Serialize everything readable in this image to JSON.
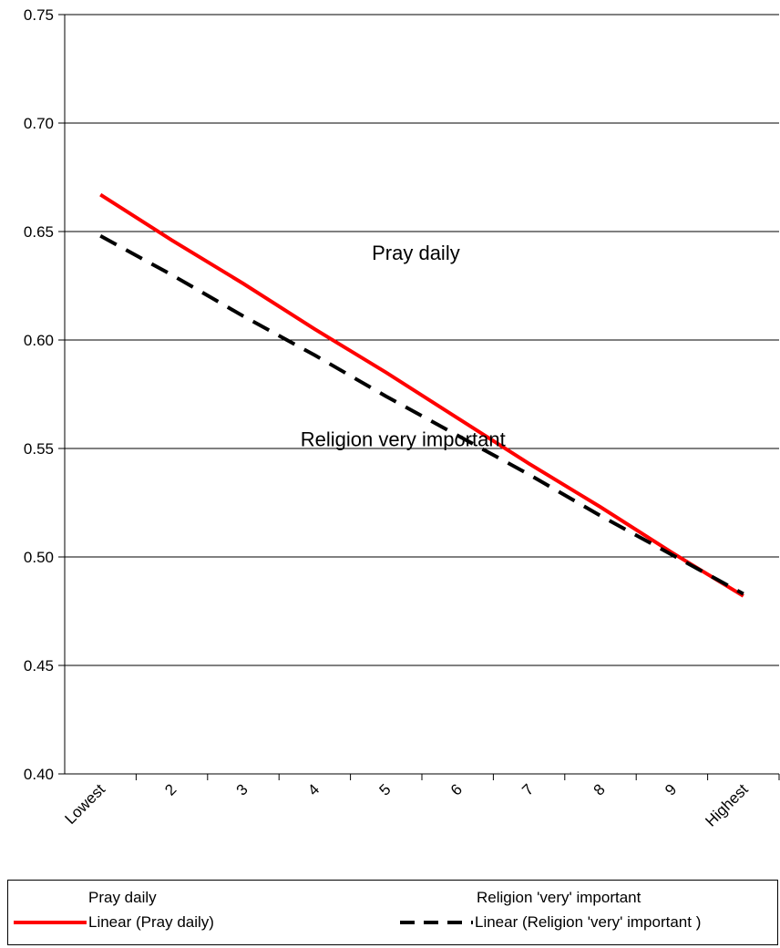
{
  "chart_data": {
    "type": "line",
    "title": "",
    "xlabel": "",
    "ylabel": "",
    "categories": [
      "Lowest",
      "2",
      "3",
      "4",
      "5",
      "6",
      "7",
      "8",
      "9",
      "Highest"
    ],
    "ylim": [
      0.4,
      0.75
    ],
    "y_ticks": [
      "0.40",
      "0.45",
      "0.50",
      "0.55",
      "0.60",
      "0.65",
      "0.70",
      "0.75"
    ],
    "grid": "horizontal",
    "series": [
      {
        "name": "Linear (Pray daily)",
        "color": "#ff0000",
        "style": "solid",
        "values": [
          0.667,
          0.646,
          0.626,
          0.605,
          0.585,
          0.564,
          0.543,
          0.523,
          0.502,
          0.482
        ]
      },
      {
        "name": "Linear (Religion 'very' important )",
        "color": "#000000",
        "style": "dashed",
        "values": [
          0.648,
          0.63,
          0.611,
          0.593,
          0.574,
          0.556,
          0.538,
          0.519,
          0.501,
          0.483
        ]
      }
    ],
    "annotations": [
      {
        "text": "Pray daily",
        "x": 4.3,
        "y": 0.637
      },
      {
        "text": "Religion very important",
        "x": 3.3,
        "y": 0.551
      }
    ],
    "legend": {
      "position": "bottom",
      "entries": [
        "Pray daily",
        "Religion 'very' important",
        "Linear (Pray daily)",
        "Linear (Religion 'very' important )"
      ]
    }
  }
}
